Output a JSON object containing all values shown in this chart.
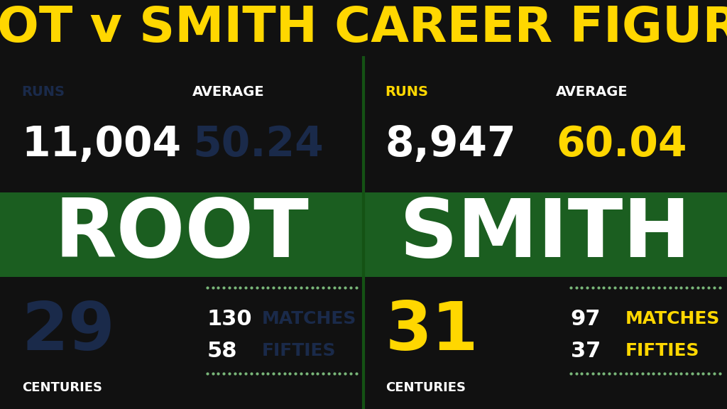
{
  "title": "ROOT v SMITH CAREER FIGURES",
  "title_color": "#FFD700",
  "title_bg": "#111111",
  "title_fontsize": 50,
  "bg_light": "#2E7D32",
  "bg_dark": "#1B5E20",
  "left": {
    "name": "ROOT",
    "runs_label": "RUNS",
    "runs_value": "11,004",
    "avg_label": "AVERAGE",
    "avg_value": "50.24",
    "centuries_value": "29",
    "centuries_label": "CENTURIES",
    "matches_value": "130",
    "matches_label": "MATCHES",
    "fifties_value": "58",
    "fifties_label": "FIFTIES",
    "name_color": "#FFFFFF",
    "runs_label_color": "#1a2a4a",
    "runs_value_color": "#FFFFFF",
    "avg_label_color": "#FFFFFF",
    "avg_value_color": "#1a2a4a",
    "centuries_value_color": "#1a2a4a",
    "centuries_label_color": "#FFFFFF",
    "matches_value_color": "#FFFFFF",
    "matches_label_color": "#1a2a4a",
    "fifties_value_color": "#FFFFFF",
    "fifties_label_color": "#1a2a4a"
  },
  "right": {
    "name": "SMITH",
    "runs_label": "RUNS",
    "runs_value": "8,947",
    "avg_label": "AVERAGE",
    "avg_value": "60.04",
    "centuries_value": "31",
    "centuries_label": "CENTURIES",
    "matches_value": "97",
    "matches_label": "MATCHES",
    "fifties_value": "37",
    "fifties_label": "FIFTIES",
    "name_color": "#FFFFFF",
    "runs_label_color": "#FFD700",
    "runs_value_color": "#FFFFFF",
    "avg_label_color": "#FFFFFF",
    "avg_value_color": "#FFD700",
    "centuries_value_color": "#FFD700",
    "centuries_label_color": "#FFFFFF",
    "matches_value_color": "#FFFFFF",
    "matches_label_color": "#FFD700",
    "fifties_value_color": "#FFFFFF",
    "fifties_label_color": "#FFD700"
  },
  "white": "#FFFFFF",
  "yellow": "#FFD700",
  "dark_navy": "#1a2a4a",
  "dot_color": "#7ab87a"
}
